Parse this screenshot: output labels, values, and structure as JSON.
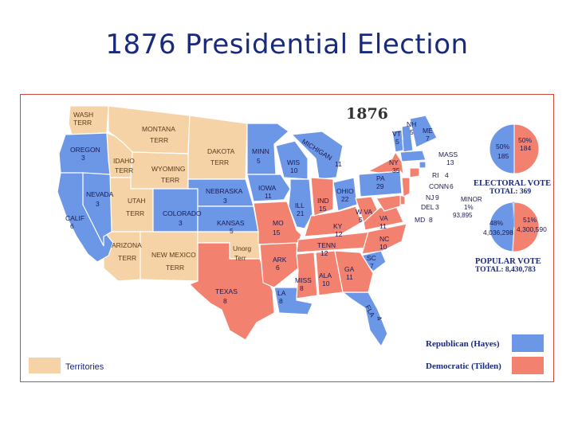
{
  "title": "1876 Presidential Election",
  "map": {
    "year": "1876",
    "colors": {
      "republican": "#6b97e6",
      "democratic": "#f2826f",
      "territory": "#f6d3a6",
      "unorganized": "#f6d3a6",
      "border": "#ffffff"
    },
    "territories": [
      {
        "name": "WASH",
        "sub": "TERR"
      },
      {
        "name": "MONTANA",
        "sub": "TERR"
      },
      {
        "name": "DAKOTA",
        "sub": "TERR"
      },
      {
        "name": "IDAHO",
        "sub": "TERR"
      },
      {
        "name": "WYOMING",
        "sub": "TERR"
      },
      {
        "name": "UTAH",
        "sub": "TERR"
      },
      {
        "name": "ARIZONA",
        "sub": "TERR"
      },
      {
        "name": "NEW MEXICO",
        "sub": "TERR"
      },
      {
        "name": "Unorg",
        "sub": "Terr"
      }
    ],
    "states": [
      {
        "name": "OREGON",
        "ev": "3",
        "party": "R"
      },
      {
        "name": "CALIF",
        "ev": "6",
        "party": "R"
      },
      {
        "name": "NEVADA",
        "ev": "3",
        "party": "R"
      },
      {
        "name": "COLORADO",
        "ev": "3",
        "party": "R"
      },
      {
        "name": "NEBRASKA",
        "ev": "3",
        "party": "R"
      },
      {
        "name": "KANSAS",
        "ev": "5",
        "party": "R"
      },
      {
        "name": "MINN",
        "ev": "5",
        "party": "R"
      },
      {
        "name": "IOWA",
        "ev": "11",
        "party": "R"
      },
      {
        "name": "WIS",
        "ev": "10",
        "party": "R"
      },
      {
        "name": "ILL",
        "ev": "21",
        "party": "R"
      },
      {
        "name": "MICHIGAN",
        "ev": "11",
        "party": "R"
      },
      {
        "name": "OHIO",
        "ev": "22",
        "party": "R"
      },
      {
        "name": "PA",
        "ev": "29",
        "party": "R"
      },
      {
        "name": "VT",
        "ev": "5",
        "party": "R"
      },
      {
        "name": "NH",
        "ev": "5",
        "party": "R"
      },
      {
        "name": "ME",
        "ev": "7",
        "party": "R"
      },
      {
        "name": "MASS",
        "ev": "13",
        "party": "R"
      },
      {
        "name": "RI",
        "ev": "4",
        "party": "R"
      },
      {
        "name": "LA",
        "ev": "8",
        "party": "R"
      },
      {
        "name": "SC",
        "ev": "7",
        "party": "R"
      },
      {
        "name": "FLA",
        "ev": "4",
        "party": "R"
      },
      {
        "name": "TEXAS",
        "ev": "8",
        "party": "D"
      },
      {
        "name": "MO",
        "ev": "15",
        "party": "D"
      },
      {
        "name": "ARK",
        "ev": "6",
        "party": "D"
      },
      {
        "name": "MISS",
        "ev": "8",
        "party": "D"
      },
      {
        "name": "ALA",
        "ev": "10",
        "party": "D"
      },
      {
        "name": "GA",
        "ev": "11",
        "party": "D"
      },
      {
        "name": "TENN",
        "ev": "12",
        "party": "D"
      },
      {
        "name": "KY",
        "ev": "12",
        "party": "D"
      },
      {
        "name": "IND",
        "ev": "15",
        "party": "D"
      },
      {
        "name": "W VA",
        "ev": "5",
        "party": "D"
      },
      {
        "name": "VA",
        "ev": "11",
        "party": "D"
      },
      {
        "name": "NC",
        "ev": "10",
        "party": "D"
      },
      {
        "name": "NY",
        "ev": "35",
        "party": "D"
      },
      {
        "name": "CONN",
        "ev": "6",
        "party": "D"
      },
      {
        "name": "NJ",
        "ev": "9",
        "party": "D"
      },
      {
        "name": "DEL",
        "ev": "3",
        "party": "D"
      },
      {
        "name": "MD",
        "ev": "8",
        "party": "D"
      }
    ]
  },
  "electoral_vote": {
    "caption": "ELECTORAL VOTE",
    "total_label": "TOTAL: 369",
    "republican": {
      "pct": "50%",
      "votes": "185",
      "share": 0.5
    },
    "democratic": {
      "pct": "50%",
      "votes": "184",
      "share": 0.5
    }
  },
  "popular_vote": {
    "caption": "POPULAR VOTE",
    "total_label": "TOTAL: 8,430,783",
    "republican": {
      "pct": "48%",
      "votes": "4,036,298",
      "share": 0.48
    },
    "democratic": {
      "pct": "51%",
      "votes": "4,300,590",
      "share": 0.51
    },
    "minor": {
      "label": "MINOR",
      "pct": "1%",
      "votes": "93,895",
      "share": 0.01
    }
  },
  "legend": {
    "territories": "Territories",
    "republican": "Republican (Hayes)",
    "democratic": "Democratic (Tilden)"
  }
}
